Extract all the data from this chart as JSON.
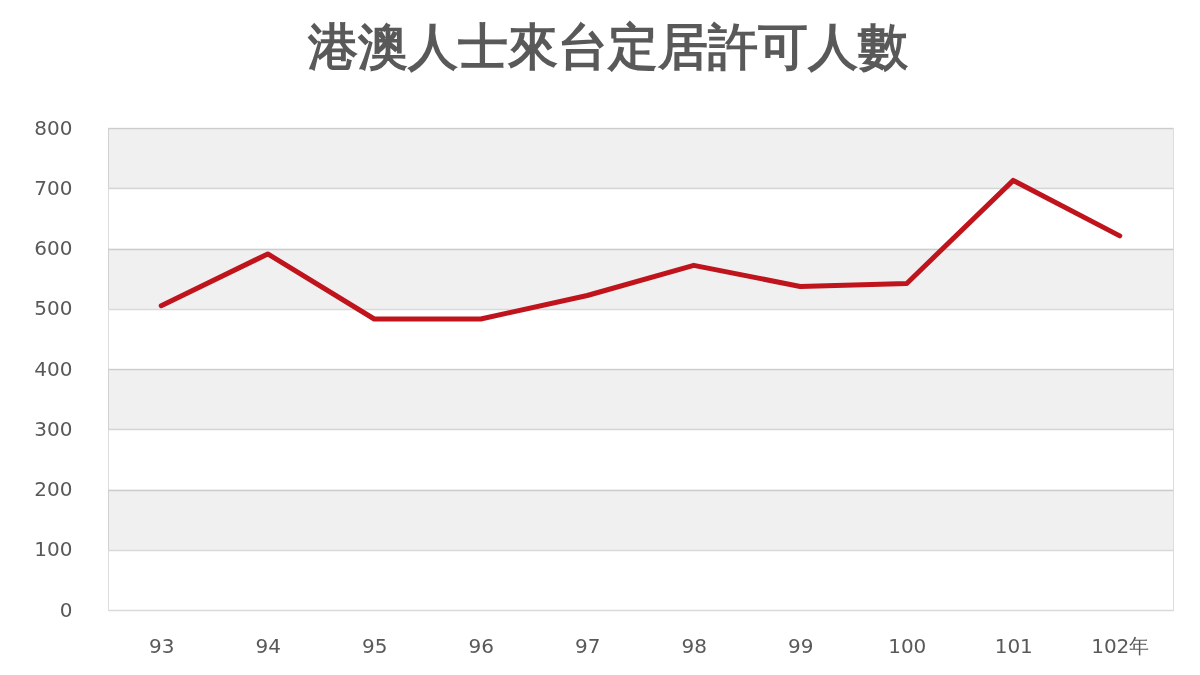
{
  "chart_data": {
    "type": "line",
    "title": "港澳人士來台定居許可人數",
    "categories": [
      "93",
      "94",
      "95",
      "96",
      "97",
      "98",
      "99",
      "100",
      "101",
      "102年"
    ],
    "series": [
      {
        "color": "#c0141c",
        "values": [
          505,
          591,
          483,
          483,
          522,
          572,
          537,
          542,
          713,
          621
        ]
      }
    ],
    "ylim": [
      0,
      800
    ],
    "yticks": [
      0,
      100,
      200,
      300,
      400,
      500,
      600,
      700,
      800
    ],
    "grid": "y",
    "line_style": "solid",
    "bands": [
      {
        "axis": "y",
        "from": 700,
        "to": 800,
        "color": "#f0f0f0"
      },
      {
        "axis": "y",
        "from": 500,
        "to": 600,
        "color": "#f0f0f0"
      },
      {
        "axis": "y",
        "from": 300,
        "to": 400,
        "color": "#f0f0f0"
      },
      {
        "axis": "y",
        "from": 100,
        "to": 200,
        "color": "#f0f0f0"
      }
    ]
  }
}
